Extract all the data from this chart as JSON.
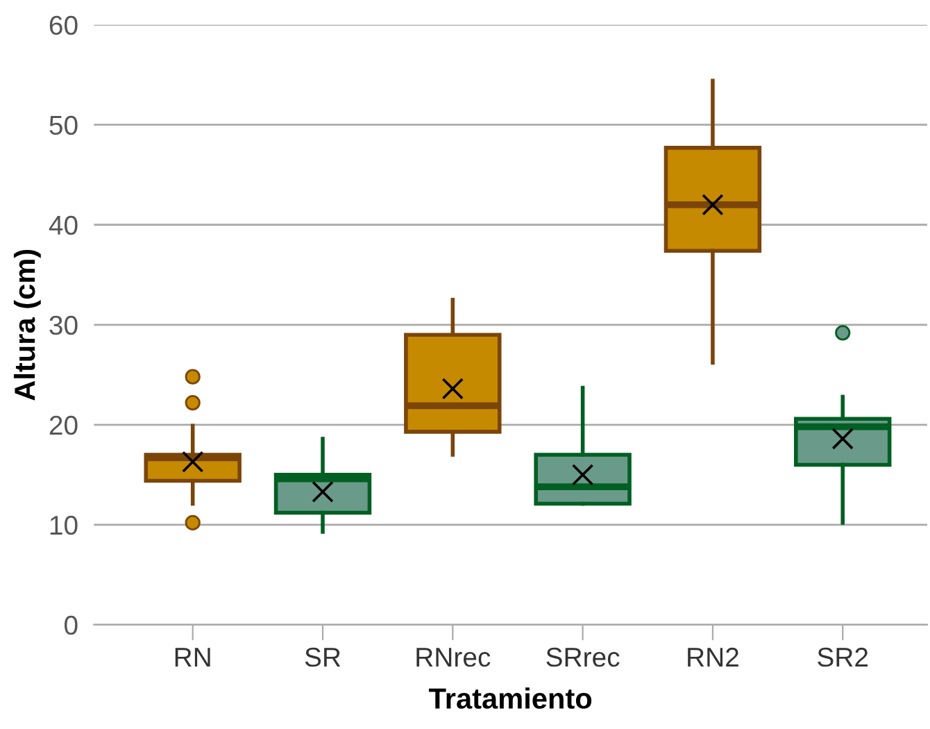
{
  "chart_data": {
    "type": "box",
    "xlabel": "Tratamiento",
    "ylabel": "Altura (cm)",
    "categories": [
      "RN",
      "SR",
      "RNrec",
      "SRrec",
      "RN2",
      "SR2"
    ],
    "colors": [
      "#c68a00",
      "#6a9a8a",
      "#c68a00",
      "#6a9a8a",
      "#c68a00",
      "#6a9a8a"
    ],
    "boxes": [
      {
        "low": 12.1,
        "q1": 14.4,
        "median": 16.7,
        "q3": 17.0,
        "high": 19.9,
        "mean": 16.3,
        "outliers": [
          24.8,
          22.2,
          10.2
        ]
      },
      {
        "low": 9.3,
        "q1": 11.2,
        "median": 14.6,
        "q3": 15.0,
        "high": 18.6,
        "mean": 13.3
      },
      {
        "low": 17.0,
        "q1": 19.3,
        "median": 21.9,
        "q3": 29.0,
        "high": 32.5,
        "mean": 23.6
      },
      {
        "low": 12.1,
        "q1": 12.1,
        "median": 13.8,
        "q3": 17.0,
        "high": 23.7,
        "mean": 15.0
      },
      {
        "low": 26.2,
        "q1": 37.4,
        "median": 42.0,
        "q3": 47.7,
        "high": 54.4,
        "mean": 42.0
      },
      {
        "low": 10.2,
        "q1": 16.0,
        "median": 19.8,
        "q3": 20.6,
        "high": 22.8,
        "mean": 18.6,
        "outliers": [
          29.2
        ]
      }
    ],
    "ylim": [
      0,
      60
    ],
    "yticks": [
      0,
      10,
      20,
      30,
      40,
      50,
      60
    ],
    "grid": "y",
    "legend": false
  }
}
